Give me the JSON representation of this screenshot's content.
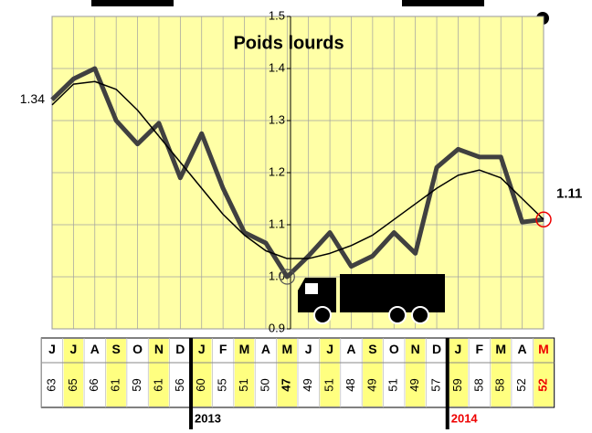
{
  "chart_data": {
    "type": "line",
    "title": "Poids lourds",
    "categories": [
      "J",
      "J",
      "A",
      "S",
      "O",
      "N",
      "D",
      "J",
      "F",
      "M",
      "A",
      "M",
      "J",
      "J",
      "A",
      "S",
      "O",
      "N",
      "D",
      "J",
      "F",
      "M",
      "A",
      "M"
    ],
    "series": [
      {
        "color": "#404040",
        "values": [
          1.34,
          1.38,
          1.4,
          1.3,
          1.255,
          1.295,
          1.19,
          1.275,
          1.17,
          1.085,
          1.065,
          1.0,
          1.04,
          1.085,
          1.02,
          1.04,
          1.085,
          1.045,
          1.21,
          1.245,
          1.23,
          1.23,
          1.105,
          1.11
        ]
      },
      {
        "color": "#000000",
        "values": [
          1.33,
          1.37,
          1.375,
          1.36,
          1.32,
          1.27,
          1.22,
          1.17,
          1.12,
          1.08,
          1.05,
          1.035,
          1.035,
          1.045,
          1.06,
          1.08,
          1.11,
          1.14,
          1.17,
          1.195,
          1.205,
          1.19,
          1.15,
          1.11
        ]
      }
    ],
    "ylim": [
      0.9,
      1.5
    ],
    "yticks": [
      {
        "value": 0.9,
        "label": "0.9"
      },
      {
        "value": 1.0,
        "label": "1.0"
      },
      {
        "value": 1.1,
        "label": "1.1"
      },
      {
        "value": 1.2,
        "label": "1.2"
      },
      {
        "value": 1.3,
        "label": "1.3"
      },
      {
        "value": 1.4,
        "label": "1.4"
      },
      {
        "value": 1.5,
        "label": "1.5"
      }
    ],
    "grid": true,
    "counts": [
      63,
      65,
      66,
      61,
      59,
      61,
      56,
      60,
      55,
      51,
      50,
      47,
      49,
      51,
      48,
      49,
      51,
      49,
      57,
      59,
      58,
      58,
      52,
      52
    ],
    "years": [
      "2013",
      "2014"
    ]
  }
}
